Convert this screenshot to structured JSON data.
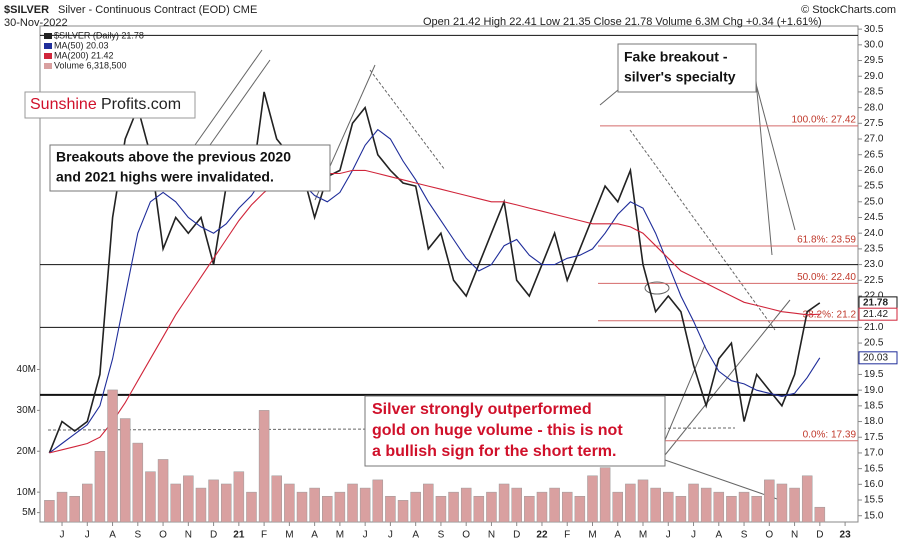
{
  "chart_data": {
    "type": "line",
    "title": "$SILVER",
    "subtitle": "Silver - Continuous Contract (EOD) CME",
    "date": "30-Nov-2022",
    "quote": "Open 21.42 High 22.41 Low 21.35 Close 21.78 Volume 6.3M Chg +0.34 (+1.61%)",
    "credit": "© StockCharts.com",
    "logo": [
      "Sunshine",
      "Profits.com"
    ],
    "annotations": [
      [
        "Breakouts above the previous 2020",
        "and 2021 highs were invalidated."
      ],
      [
        "Fake breakout -",
        "silver's specialty"
      ],
      [
        "Silver strongly outperformed",
        "gold on huge volume - this is not",
        "a bullish sign for the short term."
      ]
    ],
    "categories": [
      null,
      "J",
      null,
      "J",
      null,
      "A",
      null,
      "S",
      null,
      "O",
      null,
      "N",
      null,
      "D",
      null,
      "21",
      null,
      "F",
      null,
      "M",
      null,
      "A",
      null,
      "M",
      null,
      "J",
      null,
      "J",
      null,
      "A",
      null,
      "S",
      null,
      "O",
      null,
      "N",
      null,
      "D",
      null,
      "22",
      null,
      "F",
      null,
      "M",
      null,
      "A",
      null,
      "M",
      null,
      "J",
      null,
      "J",
      null,
      "A",
      null,
      "S",
      null,
      "O",
      null,
      "N",
      null,
      "D",
      null,
      "23"
    ],
    "series": [
      {
        "name": "$SILVER (Daily) 21.78",
        "color": "#222222",
        "values": [
          17.0,
          18.0,
          17.7,
          18.0,
          19.5,
          24.5,
          27.0,
          28.0,
          26.5,
          23.5,
          24.5,
          24.0,
          24.5,
          23.0,
          25.5,
          26.5,
          25.5,
          28.5,
          27.0,
          26.5,
          26.0,
          24.5,
          25.8,
          26.0,
          27.5,
          28.0,
          26.5,
          26.0,
          25.6,
          25.5,
          23.5,
          24.0,
          22.5,
          22.0,
          23.0,
          24.0,
          25.0,
          22.5,
          22.0,
          23.0,
          24.0,
          22.5,
          23.5,
          24.5,
          25.5,
          25.0,
          26.0,
          23.0,
          21.5,
          22.0,
          21.5,
          19.8,
          18.5,
          20.0,
          20.5,
          18.0,
          19.5,
          19.0,
          18.5,
          19.5,
          21.5,
          21.78,
          null,
          null
        ]
      },
      {
        "name": "MA(50) 20.03",
        "color": "#1f2d9a",
        "values": [
          17.0,
          17.3,
          17.6,
          17.9,
          18.5,
          20.0,
          22.0,
          24.0,
          25.0,
          25.3,
          25.0,
          24.5,
          24.2,
          24.0,
          24.3,
          24.8,
          25.2,
          25.8,
          26.2,
          26.0,
          25.6,
          25.2,
          25.0,
          25.3,
          26.0,
          26.8,
          27.3,
          27.0,
          26.3,
          25.7,
          25.0,
          24.4,
          23.8,
          23.2,
          22.8,
          23.0,
          23.6,
          23.8,
          23.3,
          23.0,
          23.0,
          23.2,
          23.3,
          23.5,
          24.0,
          24.6,
          25.0,
          24.8,
          24.0,
          23.0,
          22.0,
          21.2,
          20.3,
          19.6,
          19.3,
          19.2,
          19.0,
          18.9,
          18.8,
          18.9,
          19.4,
          20.03,
          null,
          null
        ]
      },
      {
        "name": "MA(200) 21.42",
        "color": "#d0253a",
        "values": [
          17.0,
          17.1,
          17.2,
          17.3,
          17.5,
          18.0,
          18.6,
          19.3,
          20.0,
          20.7,
          21.4,
          22.0,
          22.6,
          23.2,
          23.8,
          24.4,
          24.9,
          25.3,
          25.6,
          25.8,
          25.9,
          25.9,
          25.9,
          25.9,
          26.0,
          26.0,
          25.9,
          25.8,
          25.7,
          25.6,
          25.5,
          25.4,
          25.3,
          25.2,
          25.1,
          25.0,
          25.0,
          24.9,
          24.8,
          24.7,
          24.6,
          24.5,
          24.4,
          24.3,
          24.3,
          24.3,
          24.2,
          24.0,
          23.6,
          23.2,
          22.8,
          22.6,
          22.4,
          22.2,
          22.0,
          21.8,
          21.7,
          21.6,
          21.5,
          21.45,
          21.4,
          21.42,
          null,
          null
        ]
      },
      {
        "name": "Volume 6,318,500",
        "color": "#d9a0a0",
        "axis": "y2",
        "values": [
          8000000,
          10000000,
          9000000,
          12000000,
          20000000,
          35000000,
          28000000,
          22000000,
          15000000,
          18000000,
          12000000,
          14000000,
          11000000,
          13000000,
          12000000,
          15000000,
          10000000,
          30000000,
          14000000,
          12000000,
          10000000,
          11000000,
          9000000,
          10000000,
          12000000,
          11000000,
          13000000,
          9000000,
          8000000,
          10000000,
          12000000,
          9000000,
          10000000,
          11000000,
          9000000,
          10000000,
          12000000,
          11000000,
          9000000,
          10000000,
          11000000,
          10000000,
          9000000,
          14000000,
          16000000,
          10000000,
          12000000,
          13000000,
          11000000,
          10000000,
          9000000,
          12000000,
          11000000,
          10000000,
          9000000,
          10000000,
          9000000,
          13000000,
          12000000,
          11000000,
          14000000,
          6318500,
          null,
          null
        ]
      }
    ],
    "levels": [
      30.3,
      23.0,
      21.0,
      18.85
    ],
    "fibonacci": [
      {
        "label": "100.0%: 27.42",
        "value": 27.42
      },
      {
        "label": "61.8%: 23.59",
        "value": 23.59
      },
      {
        "label": "50.0%: 22.40",
        "value": 22.4
      },
      {
        "label": "38.2%: 21.2",
        "value": 21.21
      },
      {
        "label": "0.0%: 17.39",
        "value": 17.39
      }
    ],
    "ylim": [
      14.8,
      30.6
    ],
    "yticks": [
      {
        "value": 15,
        "label": "15.0"
      },
      15.5,
      {
        "value": 16,
        "label": "16.0"
      },
      16.5,
      {
        "value": 17,
        "label": "17.0"
      },
      17.5,
      {
        "value": 18,
        "label": "18.0"
      },
      18.5,
      {
        "value": 19,
        "label": "19.0"
      },
      19.5,
      {
        "value": 20,
        "label": "20.0"
      },
      20.5,
      {
        "value": 21,
        "label": "21.0"
      },
      21.5,
      {
        "value": 22,
        "label": "22.0"
      },
      22.5,
      {
        "value": 23,
        "label": "23.0"
      },
      23.5,
      {
        "value": 24,
        "label": "24.0"
      },
      24.5,
      {
        "value": 25,
        "label": "25.0"
      },
      25.5,
      {
        "value": 26,
        "label": "26.0"
      },
      26.5,
      {
        "value": 27,
        "label": "27.0"
      },
      27.5,
      {
        "value": 28,
        "label": "28.0"
      },
      28.5,
      {
        "value": 29,
        "label": "29.0"
      },
      29.5,
      {
        "value": 30,
        "label": "30.0"
      },
      30.5
    ],
    "y2lim": [
      2700000,
      124000000
    ],
    "y2ticks": [
      {
        "value": 5000000,
        "label": "5M"
      },
      {
        "value": 10000000,
        "label": "10M"
      },
      {
        "value": 20000000,
        "label": "20M"
      },
      {
        "value": 30000000,
        "label": "30M"
      },
      {
        "value": 40000000,
        "label": "40M"
      }
    ],
    "grid": false
  }
}
